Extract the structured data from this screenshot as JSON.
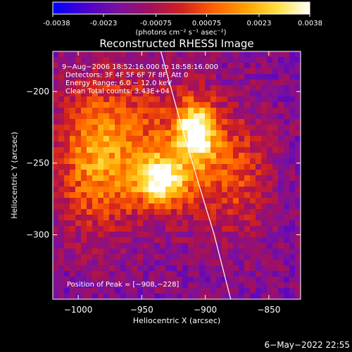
{
  "colorbar": {
    "ticks": [
      {
        "value": -0.0038,
        "label": "-0.0038"
      },
      {
        "value": -0.0023,
        "label": "-0.0023"
      },
      {
        "value": -0.00075,
        "label": "-0.00075"
      },
      {
        "value": 0.00075,
        "label": "0.00075"
      },
      {
        "value": 0.0023,
        "label": "0.0023"
      },
      {
        "value": 0.0038,
        "label": "0.0038"
      }
    ],
    "range": [
      -0.0038,
      0.0038
    ],
    "unit_label": "(photons cm⁻² s⁻¹ asec⁻²)",
    "colors": [
      "#0000ff",
      "#4a00d0",
      "#7a10a0",
      "#a01060",
      "#d02020",
      "#ff6000",
      "#ffa000",
      "#ffe040",
      "#ffffff"
    ]
  },
  "chart_data": {
    "type": "heatmap",
    "title": "Reconstructed RHESSI Image",
    "xlabel": "Heliocentric X (arcsec)",
    "ylabel": "Heliocentric Y (arcsec)",
    "xlim": [
      -1020,
      -825
    ],
    "ylim": [
      -345,
      -172
    ],
    "xticks": [
      {
        "value": -1000,
        "label": "−1000"
      },
      {
        "value": -950,
        "label": "−950"
      },
      {
        "value": -900,
        "label": "−900"
      },
      {
        "value": -850,
        "label": "−850"
      }
    ],
    "yticks": [
      {
        "value": -200,
        "label": "−200"
      },
      {
        "value": -250,
        "label": "−250"
      },
      {
        "value": -300,
        "label": "−300"
      }
    ],
    "info_lines": [
      "9−Aug−2006 18:52:16.000 to 18:58:16.000",
      "Detectors: 3F 4F 5F 6F 7F 8F, Att 0",
      "Energy Range: 6.0 − 12.0 keV",
      "Clean    Total counts: 3.43E+04"
    ],
    "peak_label": "Position of Peak = [−908,−228]",
    "peak": {
      "x": -908,
      "y": -228
    },
    "limb_curve": [
      {
        "x": -935,
        "y": -172
      },
      {
        "x": -920,
        "y": -220
      },
      {
        "x": -905,
        "y": -265
      },
      {
        "x": -893,
        "y": -300
      },
      {
        "x": -880,
        "y": -345
      }
    ],
    "sources": [
      {
        "x": -908,
        "y": -228,
        "amp": 1.0,
        "sx": 11,
        "sy": 15
      },
      {
        "x": -935,
        "y": -262,
        "amp": 0.9,
        "sx": 14,
        "sy": 12
      },
      {
        "x": -960,
        "y": -240,
        "amp": 0.55,
        "sx": 40,
        "sy": 35
      },
      {
        "x": -880,
        "y": -255,
        "amp": 0.45,
        "sx": 22,
        "sy": 30
      },
      {
        "x": -990,
        "y": -250,
        "amp": 0.35,
        "sx": 18,
        "sy": 35
      }
    ],
    "footer_timestamp": "6−May−2022 22:55"
  }
}
